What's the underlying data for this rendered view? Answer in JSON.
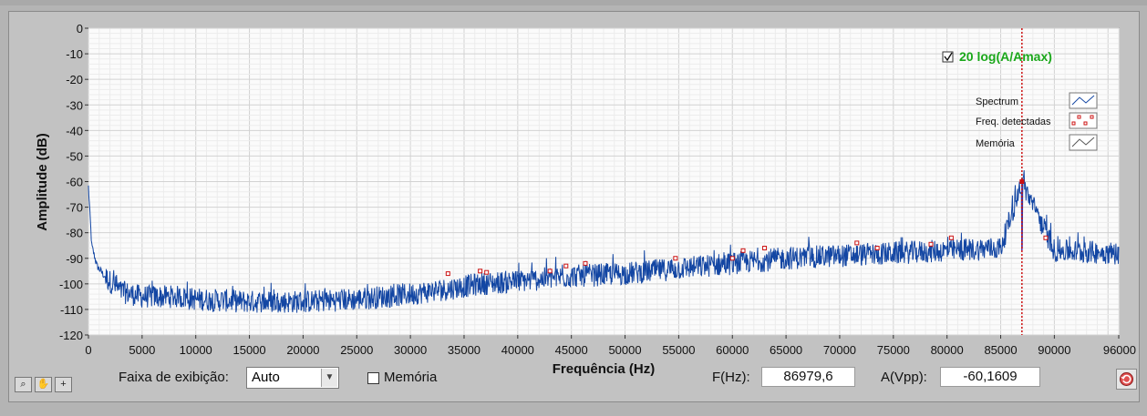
{
  "colors": {
    "spectrum": "#1346a3",
    "peak": "#cc1111",
    "cursor": "#cc1111",
    "legend_title": "#1ba81b"
  },
  "chart_data": {
    "type": "line",
    "title": "",
    "xlabel": "Frequência (Hz)",
    "ylabel": "Amplitude (dB)",
    "xlim": [
      0,
      96000
    ],
    "ylim": [
      -120,
      0
    ],
    "x_ticks": [
      "0",
      "5000",
      "10000",
      "15000",
      "20000",
      "25000",
      "30000",
      "35000",
      "40000",
      "45000",
      "50000",
      "55000",
      "60000",
      "65000",
      "70000",
      "75000",
      "80000",
      "85000",
      "90000",
      "96000"
    ],
    "y_ticks": [
      "0",
      "-10",
      "-20",
      "-30",
      "-40",
      "-50",
      "-60",
      "-70",
      "-80",
      "-90",
      "-100",
      "-110",
      "-120"
    ],
    "grid": true,
    "legend_title": "20 log(A/Amax)",
    "legend_checked": true,
    "legend": [
      "Spectrum",
      "Freq. detectadas",
      "Memória"
    ],
    "cursor_x": 86979.6,
    "series": [
      {
        "name": "Spectrum",
        "x": [
          0,
          300,
          800,
          1500,
          3000,
          5000,
          8000,
          10000,
          15000,
          20000,
          25000,
          30000,
          33500,
          36500,
          40000,
          45000,
          50000,
          55000,
          60000,
          65000,
          70000,
          75000,
          80000,
          85000,
          86979.6,
          90000,
          96000
        ],
        "y": [
          -62,
          -85,
          -93,
          -97,
          -103,
          -105,
          -105,
          -106,
          -107,
          -107,
          -106,
          -104,
          -102,
          -100,
          -99,
          -97,
          -96,
          -94,
          -92,
          -90,
          -89,
          -88,
          -87,
          -86,
          -60.2,
          -87,
          -88
        ]
      },
      {
        "name": "Freq. detectadas",
        "x": [
          33500,
          36500,
          37100,
          43000,
          44500,
          46300,
          54700,
          60000,
          61000,
          63000,
          71600,
          73500,
          78500,
          80400,
          86979.6,
          89200
        ],
        "y": [
          -96,
          -95,
          -95.5,
          -95,
          -93,
          -92,
          -90,
          -90,
          -87,
          -86,
          -84,
          -86,
          -84.5,
          -82,
          -60,
          -82
        ]
      }
    ]
  },
  "controls": {
    "faixa_label": "Faixa de exibição:",
    "faixa_value": "Auto",
    "memoria_label": "Memória",
    "f_label": "F(Hz):",
    "f_value": "86979,6",
    "a_label": "A(Vpp):",
    "a_value": "-60,1609"
  },
  "toolbar": {
    "icons": [
      "zoom-icon",
      "pan-hand-icon",
      "cursor-plus-icon"
    ]
  }
}
